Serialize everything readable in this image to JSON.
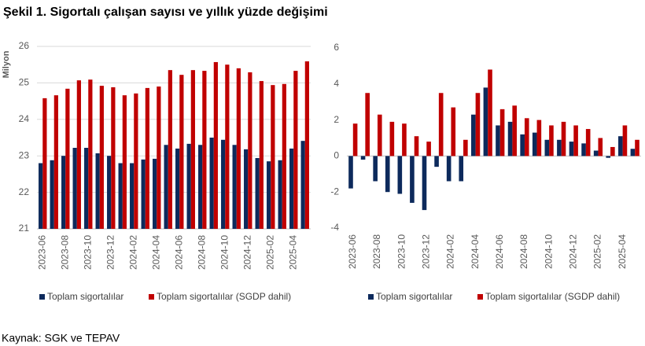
{
  "title": "Şekil 1. Sigortalı çalışan sayısı ve yıllık yüzde değişimi",
  "source": "Kaynak: SGK ve TEPAV",
  "chart_data": [
    {
      "type": "bar",
      "ylabel": "Milyon",
      "categories": [
        "2023-06",
        null,
        "2023-08",
        null,
        "2023-10",
        null,
        "2023-12",
        null,
        "2024-02",
        null,
        "2024-04",
        null,
        "2024-06",
        null,
        "2024-08",
        null,
        "2024-10",
        null,
        "2024-12",
        null,
        "2025-02",
        null,
        "2025-04",
        null
      ],
      "series": [
        {
          "name": "Toplam sigortalılar",
          "color": "#0d2a5c",
          "values": [
            22.8,
            22.88,
            23.0,
            23.22,
            23.22,
            23.07,
            23.0,
            22.8,
            22.8,
            22.9,
            22.92,
            23.3,
            23.2,
            23.33,
            23.3,
            23.5,
            23.44,
            23.3,
            23.18,
            22.94,
            22.85,
            22.88,
            23.2,
            23.41
          ]
        },
        {
          "name": "Toplam sigortalılar (SGDP dahil)",
          "color": "#c00000",
          "values": [
            24.58,
            24.66,
            24.84,
            25.07,
            25.09,
            24.92,
            24.88,
            24.66,
            24.71,
            24.86,
            24.9,
            25.35,
            25.22,
            25.35,
            25.33,
            25.57,
            25.5,
            25.4,
            25.29,
            25.05,
            24.94,
            24.97,
            25.33,
            25.59
          ]
        }
      ],
      "ylim": [
        21,
        26
      ],
      "yticks": [
        21,
        22,
        23,
        24,
        25,
        26
      ],
      "grid": true
    },
    {
      "type": "bar",
      "categories": [
        "2023-06",
        null,
        "2023-08",
        null,
        "2023-10",
        null,
        "2023-12",
        null,
        "2024-02",
        null,
        "2024-04",
        null,
        "2024-06",
        null,
        "2024-08",
        null,
        "2024-10",
        null,
        "2024-12",
        null,
        "2025-02",
        null,
        "2025-04",
        null
      ],
      "series": [
        {
          "name": "Toplam sigortalılar",
          "color": "#0d2a5c",
          "values": [
            -1.8,
            -0.2,
            -1.4,
            -2.0,
            -2.1,
            -2.6,
            -3.0,
            -0.6,
            -1.4,
            -1.4,
            2.3,
            3.8,
            1.7,
            1.9,
            1.2,
            1.3,
            0.9,
            0.9,
            0.8,
            0.7,
            0.3,
            -0.1,
            1.1,
            0.4
          ]
        },
        {
          "name": "Toplam sigortalılar (SGDP dahil)",
          "color": "#c00000",
          "values": [
            1.8,
            3.5,
            2.3,
            1.9,
            1.8,
            1.1,
            0.8,
            3.5,
            2.7,
            0.9,
            3.5,
            4.8,
            2.6,
            2.8,
            2.1,
            2.0,
            1.7,
            1.9,
            1.7,
            1.5,
            1.0,
            0.5,
            1.7,
            0.9
          ]
        }
      ],
      "ylim": [
        -4,
        6
      ],
      "yticks": [
        -4,
        -2,
        0,
        2,
        4,
        6
      ],
      "grid": false
    }
  ]
}
